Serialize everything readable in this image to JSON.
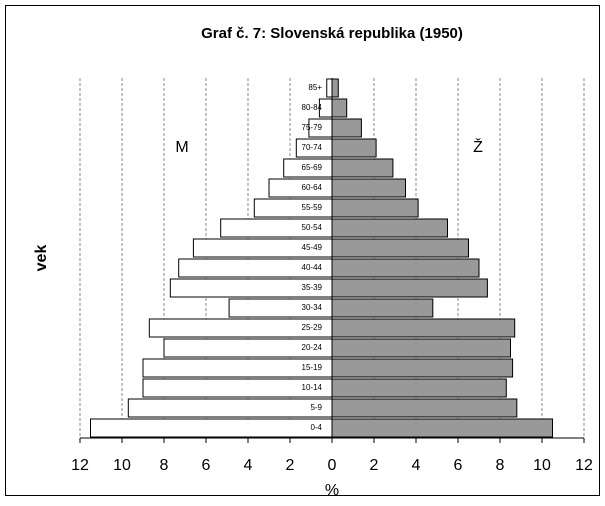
{
  "chart_data": {
    "type": "pyramid",
    "title": "Graf č. 7: Slovenská republika (1950)",
    "ylabel": "vek",
    "xlabel": "%",
    "categories": [
      "0-4",
      "5-9",
      "10-14",
      "15-19",
      "20-24",
      "25-29",
      "30-34",
      "35-39",
      "40-44",
      "45-49",
      "50-54",
      "55-59",
      "60-64",
      "65-69",
      "70-74",
      "75-79",
      "80-84",
      "85+"
    ],
    "series": [
      {
        "name": "M",
        "side": "left",
        "color": "#ffffff",
        "values": [
          11.5,
          9.7,
          9.0,
          9.0,
          8.0,
          8.7,
          4.9,
          7.7,
          7.3,
          6.6,
          5.3,
          3.7,
          3.0,
          2.3,
          1.7,
          1.1,
          0.6,
          0.25
        ]
      },
      {
        "name": "Ž",
        "side": "right",
        "color": "#999999",
        "values": [
          10.5,
          8.8,
          8.3,
          8.6,
          8.5,
          8.7,
          4.8,
          7.4,
          7.0,
          6.5,
          5.5,
          4.1,
          3.5,
          2.9,
          2.1,
          1.4,
          0.7,
          0.3
        ]
      }
    ],
    "xlim": [
      -12,
      12
    ],
    "xticks": [
      {
        "value": -12,
        "label": "12"
      },
      {
        "value": -10,
        "label": "10"
      },
      {
        "value": -8,
        "label": "8"
      },
      {
        "value": -6,
        "label": "6"
      },
      {
        "value": -4,
        "label": "4"
      },
      {
        "value": -2,
        "label": "2"
      },
      0,
      2,
      4,
      6,
      8,
      10,
      12
    ],
    "grid": true
  }
}
